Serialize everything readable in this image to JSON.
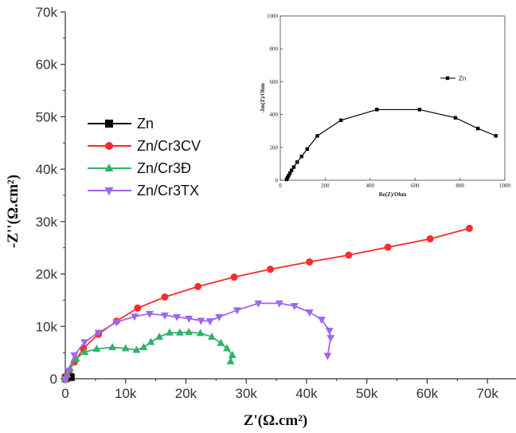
{
  "chart_data": [
    {
      "type": "line",
      "xlabel": "Z'(Ω.cm²)",
      "ylabel": "-Z''(Ω.cm²)",
      "xlim": [
        0,
        75000
      ],
      "ylim": [
        0,
        70000
      ],
      "xticks": [
        "0",
        "10k",
        "20k",
        "30k",
        "40k",
        "50k",
        "60k",
        "70k"
      ],
      "yticks": [
        "0",
        "10k",
        "20k",
        "30k",
        "40k",
        "50k",
        "60k",
        "70k"
      ],
      "legend_position": "left-middle",
      "series": [
        {
          "name": "Zn",
          "color": "#000000",
          "marker": "square",
          "x": [
            30,
            50,
            80,
            120,
            170,
            250,
            350,
            450,
            600,
            800,
            960
          ],
          "y": [
            20,
            50,
            100,
            160,
            230,
            300,
            360,
            400,
            430,
            400,
            270
          ]
        },
        {
          "name": "Zn/Cr3CV",
          "color": "#ff2a2a",
          "marker": "circle",
          "x": [
            0,
            200,
            600,
            1500,
            3000,
            5500,
            8500,
            12000,
            16500,
            22000,
            28000,
            34000,
            40500,
            47000,
            53500,
            60500,
            67000
          ],
          "y": [
            0,
            500,
            1500,
            3200,
            5800,
            8500,
            11000,
            13500,
            15600,
            17600,
            19400,
            20900,
            22300,
            23600,
            25100,
            26700,
            28700
          ]
        },
        {
          "name": "Zn/Cr3Đ",
          "color": "#2fb36b",
          "marker": "triangle-up",
          "x": [
            0,
            300,
            800,
            1800,
            3200,
            5200,
            7800,
            10000,
            11800,
            13000,
            14200,
            15600,
            17300,
            19000,
            20500,
            22400,
            24300,
            25800,
            26800,
            27700,
            27400
          ],
          "y": [
            0,
            800,
            2000,
            3800,
            5100,
            5700,
            6000,
            5800,
            5500,
            6000,
            7000,
            8000,
            8800,
            8800,
            8900,
            8700,
            8000,
            6800,
            5800,
            4500,
            3300
          ]
        },
        {
          "name": "Zn/Cr3TX",
          "color": "#a066ee",
          "marker": "triangle-down",
          "x": [
            0,
            500,
            1500,
            3200,
            5500,
            8500,
            11500,
            14000,
            16500,
            18500,
            20500,
            22500,
            24000,
            25500,
            28500,
            32000,
            35500,
            38000,
            40500,
            42500,
            43800,
            44000,
            43500
          ],
          "y": [
            0,
            1500,
            4500,
            7000,
            8800,
            10800,
            11900,
            12400,
            12100,
            11800,
            11500,
            11100,
            11000,
            11800,
            13100,
            14400,
            14400,
            13900,
            12700,
            11300,
            9200,
            7800,
            4400
          ]
        }
      ]
    },
    {
      "type": "line",
      "xlabel": "Re(Z)/Ohm",
      "ylabel": "-Im(Z)/Ohm",
      "xlim": [
        0,
        1000
      ],
      "ylim": [
        0,
        1000
      ],
      "xticks": [
        "0",
        "200",
        "400",
        "600",
        "800",
        "1000"
      ],
      "yticks": [
        "0",
        "200",
        "400",
        "600",
        "800",
        "1000"
      ],
      "legend_position": "top-right",
      "series": [
        {
          "name": "Zn",
          "color": "#000000",
          "marker": "square",
          "x": [
            28,
            32,
            37,
            43,
            50,
            60,
            75,
            95,
            120,
            165,
            270,
            430,
            620,
            780,
            880,
            960
          ],
          "y": [
            5,
            15,
            28,
            42,
            60,
            80,
            110,
            145,
            190,
            270,
            365,
            430,
            430,
            380,
            315,
            270
          ]
        }
      ]
    }
  ]
}
